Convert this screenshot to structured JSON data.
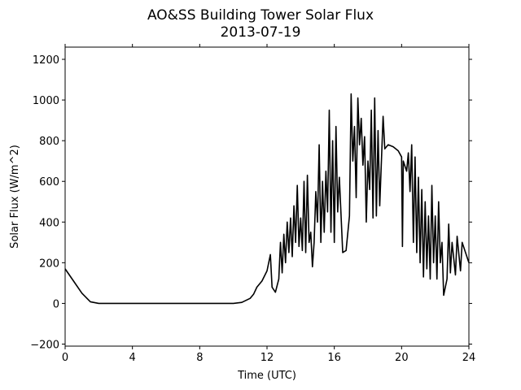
{
  "chart_data": {
    "type": "line",
    "title": "AO&SS Building Tower Solar Flux",
    "subtitle": "2013-07-19",
    "x_label": "Time (UTC)",
    "y_label": "Solar Flux (W/m^2)",
    "xlim": [
      0,
      24
    ],
    "ylim": [
      -210,
      1260
    ],
    "xticks": [
      0,
      4,
      8,
      12,
      16,
      20,
      24
    ],
    "yticks": [
      {
        "value": -200,
        "label": "−200"
      },
      0,
      200,
      400,
      600,
      800,
      1000,
      1200
    ],
    "series": [
      {
        "color": "#000000",
        "x": [
          0,
          0.5,
          1,
          1.5,
          2,
          4,
          6,
          8,
          10,
          10.5,
          11,
          11.2,
          11.4,
          11.7,
          12,
          12.2,
          12.3,
          12.5,
          12.7,
          12.8,
          12.9,
          13,
          13.1,
          13.2,
          13.3,
          13.4,
          13.5,
          13.6,
          13.7,
          13.8,
          13.9,
          14,
          14.1,
          14.2,
          14.3,
          14.4,
          14.5,
          14.6,
          14.7,
          14.8,
          14.9,
          15,
          15.1,
          15.2,
          15.3,
          15.4,
          15.5,
          15.6,
          15.7,
          15.8,
          15.9,
          16,
          16.1,
          16.2,
          16.3,
          16.5,
          16.7,
          16.9,
          17,
          17.1,
          17.2,
          17.3,
          17.4,
          17.5,
          17.6,
          17.7,
          17.8,
          17.9,
          18,
          18.1,
          18.2,
          18.3,
          18.4,
          18.5,
          18.6,
          18.7,
          18.9,
          19,
          19.2,
          19.5,
          19.8,
          20,
          20.05,
          20.1,
          20.3,
          20.4,
          20.5,
          20.6,
          20.7,
          20.8,
          20.9,
          21,
          21.1,
          21.2,
          21.3,
          21.4,
          21.5,
          21.6,
          21.7,
          21.8,
          21.9,
          22,
          22.1,
          22.2,
          22.3,
          22.4,
          22.5,
          22.7,
          22.8,
          22.9,
          23,
          23.1,
          23.2,
          23.3,
          23.5,
          23.6,
          23.8,
          24
        ],
        "values": [
          170,
          110,
          50,
          8,
          0,
          0,
          0,
          0,
          0,
          5,
          25,
          45,
          80,
          110,
          160,
          240,
          80,
          55,
          120,
          300,
          150,
          340,
          200,
          400,
          250,
          420,
          230,
          480,
          300,
          580,
          280,
          420,
          260,
          600,
          250,
          630,
          300,
          350,
          180,
          300,
          550,
          400,
          780,
          300,
          600,
          350,
          650,
          450,
          950,
          350,
          800,
          300,
          870,
          450,
          620,
          250,
          260,
          430,
          1030,
          700,
          870,
          520,
          1010,
          780,
          910,
          680,
          820,
          400,
          700,
          560,
          950,
          420,
          1010,
          430,
          850,
          480,
          920,
          760,
          780,
          770,
          750,
          720,
          280,
          700,
          650,
          740,
          550,
          780,
          300,
          720,
          250,
          620,
          200,
          560,
          130,
          500,
          170,
          430,
          120,
          580,
          200,
          430,
          120,
          500,
          200,
          300,
          40,
          120,
          390,
          150,
          300,
          220,
          140,
          330,
          160,
          300,
          250,
          200
        ]
      }
    ]
  }
}
